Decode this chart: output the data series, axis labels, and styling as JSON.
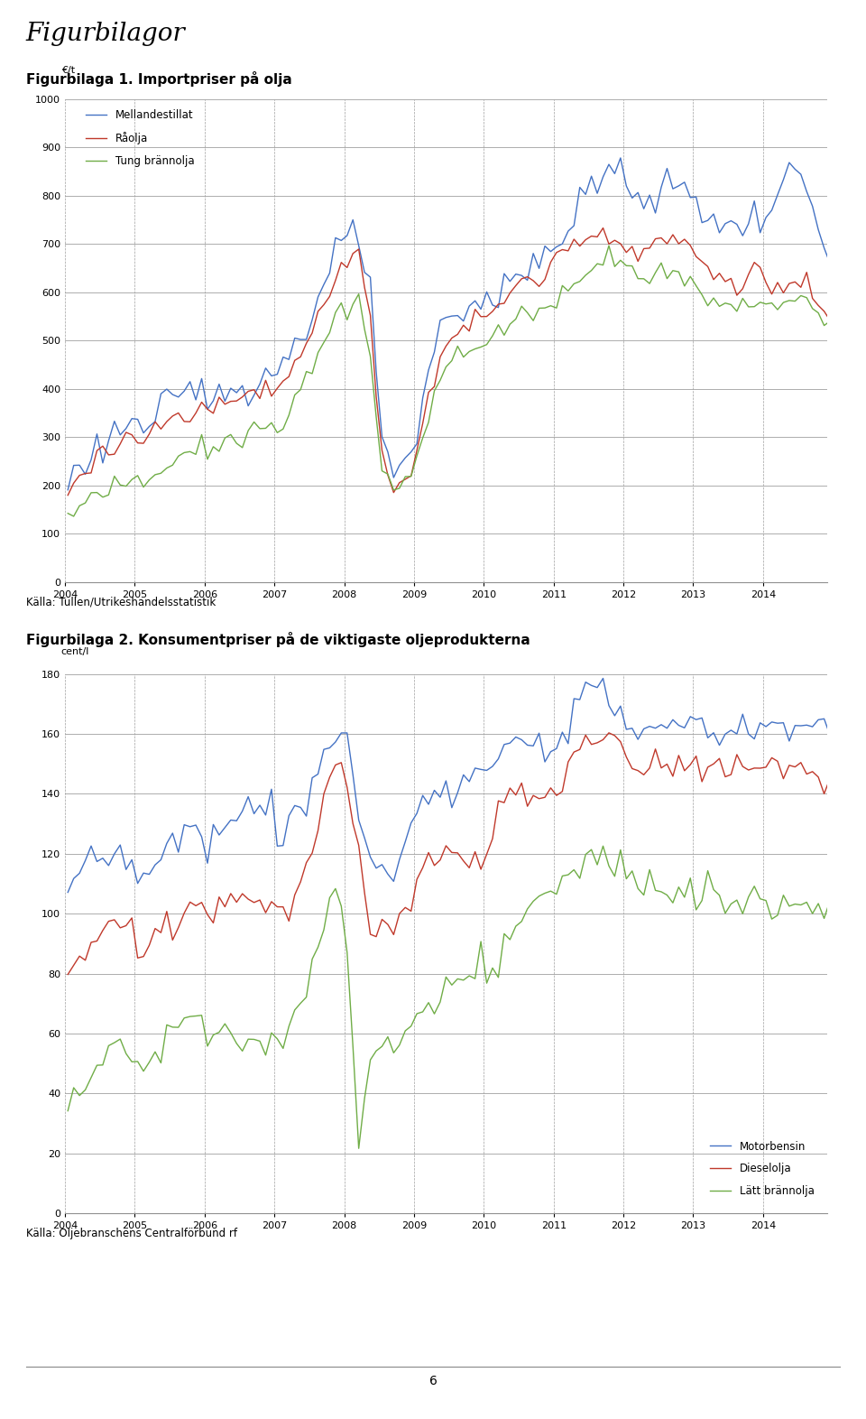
{
  "page_title": "Figurbilagor",
  "fig1_title": "Figurbilaga 1. Importpriser på olja",
  "fig1_ylabel": "€/t",
  "fig1_source": "Källa: Tullen/Utrikeshandelsstatistik",
  "fig2_title": "Figurbilaga 2. Konsumentpriser på de viktigaste oljeprodukterna",
  "fig2_ylabel": "cent/l",
  "fig2_source": "Källa: Oljebranschens Centralförbund rf",
  "fig1_ylim": [
    0,
    1000
  ],
  "fig1_yticks": [
    0,
    100,
    200,
    300,
    400,
    500,
    600,
    700,
    800,
    900,
    1000
  ],
  "fig2_ylim": [
    0,
    180
  ],
  "fig2_yticks": [
    0,
    20,
    40,
    60,
    80,
    100,
    120,
    140,
    160,
    180
  ],
  "color_blue": "#4472C4",
  "color_red": "#C0392B",
  "color_green": "#70AD47",
  "color_grid_h": "#A0A0A0",
  "color_grid_v": "#A0A0A0",
  "fig1_legend": [
    "Mellandestillat",
    "Råolja",
    "Tung brännolja"
  ],
  "fig2_legend": [
    "Motorbensin",
    "Dieselolja",
    "Lätt brännolja"
  ],
  "page_number": "6",
  "year_ticks": [
    2004,
    2005,
    2006,
    2007,
    2008,
    2009,
    2010,
    2011,
    2012,
    2013,
    2014
  ]
}
